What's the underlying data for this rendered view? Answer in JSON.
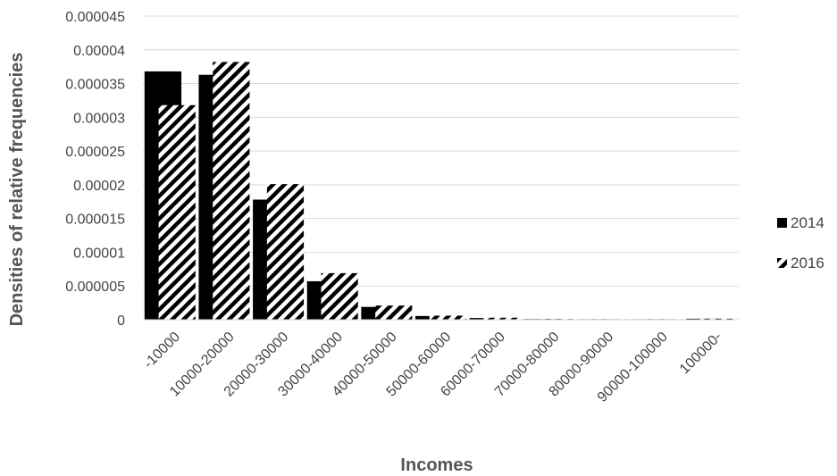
{
  "chart_data": {
    "type": "bar",
    "xlabel": "Incomes",
    "ylabel": "Densities  of relative frequencies",
    "ylim": [
      0,
      4.5e-05
    ],
    "y_ticks": [
      "0",
      "0.000005",
      "0.00001",
      "0.000015",
      "0.00002",
      "0.000025",
      "0.00003",
      "0.000035",
      "0.00004",
      "0.000045"
    ],
    "categories": [
      "-10000",
      "10000-20000",
      "20000-30000",
      "30000-40000",
      "40000-50000",
      "50000-60000",
      "60000-70000",
      "70000-80000",
      "80000-90000",
      "90000-100000",
      "100000-"
    ],
    "series": [
      {
        "name": "2014",
        "pattern": "solid",
        "color": "#000000",
        "values": [
          3.68e-05,
          3.63e-05,
          1.78e-05,
          5.7e-06,
          1.9e-06,
          5.5e-07,
          2.5e-07,
          1e-07,
          5e-08,
          5e-08,
          1.5e-07
        ]
      },
      {
        "name": "2016",
        "pattern": "diagonal-hatch",
        "color": "#000000",
        "values": [
          3.18e-05,
          3.82e-05,
          2.01e-05,
          6.9e-06,
          2.1e-06,
          6e-07,
          3e-07,
          1e-07,
          5e-08,
          5e-08,
          1.5e-07
        ]
      }
    ],
    "grid": true,
    "legend": "right"
  }
}
